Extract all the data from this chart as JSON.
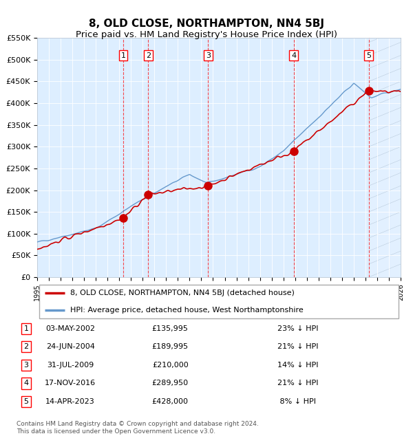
{
  "title": "8, OLD CLOSE, NORTHAMPTON, NN4 5BJ",
  "subtitle": "Price paid vs. HM Land Registry's House Price Index (HPI)",
  "ylim": [
    0,
    550000
  ],
  "yticks": [
    0,
    50000,
    100000,
    150000,
    200000,
    250000,
    300000,
    350000,
    400000,
    450000,
    500000,
    550000
  ],
  "ytick_labels": [
    "£0",
    "£50K",
    "£100K",
    "£150K",
    "£200K",
    "£250K",
    "£300K",
    "£350K",
    "£400K",
    "£450K",
    "£500K",
    "£550K"
  ],
  "x_start_year": 1995,
  "x_end_year": 2026,
  "hpi_color": "#6699CC",
  "price_color": "#CC0000",
  "bg_color": "#DDEEFF",
  "sale_dates_decimal": [
    2002.34,
    2004.48,
    2009.58,
    2016.88,
    2023.28
  ],
  "sale_prices": [
    135995,
    189995,
    210000,
    289950,
    428000
  ],
  "sale_labels": [
    "1",
    "2",
    "3",
    "4",
    "5"
  ],
  "legend_label_red": "8, OLD CLOSE, NORTHAMPTON, NN4 5BJ (detached house)",
  "legend_label_blue": "HPI: Average price, detached house, West Northamptonshire",
  "table_rows": [
    [
      "1",
      "03-MAY-2002",
      "£135,995",
      "23% ↓ HPI"
    ],
    [
      "2",
      "24-JUN-2004",
      "£189,995",
      "21% ↓ HPI"
    ],
    [
      "3",
      "31-JUL-2009",
      "£210,000",
      "14% ↓ HPI"
    ],
    [
      "4",
      "17-NOV-2016",
      "£289,950",
      "21% ↓ HPI"
    ],
    [
      "5",
      "14-APR-2023",
      "£428,000",
      " 8% ↓ HPI"
    ]
  ],
  "footnote": "Contains HM Land Registry data © Crown copyright and database right 2024.\nThis data is licensed under the Open Government Licence v3.0.",
  "title_fontsize": 11,
  "subtitle_fontsize": 9.5
}
